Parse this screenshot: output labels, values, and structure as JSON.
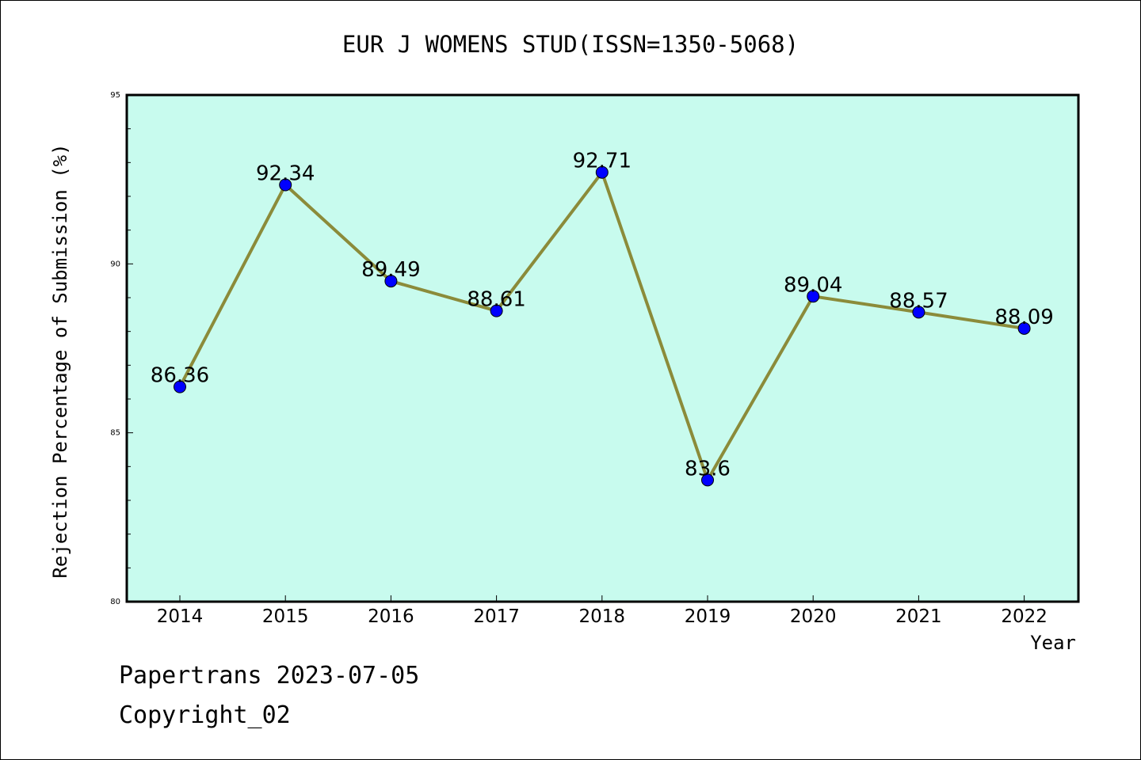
{
  "chart_data": {
    "type": "line",
    "title": "EUR J WOMENS STUD(ISSN=1350-5068)",
    "xlabel": "Year",
    "ylabel": "Rejection Percentage of Submission (%)",
    "categories": [
      "2014",
      "2015",
      "2016",
      "2017",
      "2018",
      "2019",
      "2020",
      "2021",
      "2022"
    ],
    "series": [
      {
        "values": [
          86.36,
          92.34,
          89.49,
          88.61,
          92.71,
          83.6,
          89.04,
          88.57,
          88.09
        ]
      }
    ],
    "data_labels": [
      "86.36",
      "92.34",
      "89.49",
      "88.61",
      "92.71",
      "83.6",
      "89.04",
      "88.57",
      "88.09"
    ],
    "ylim": [
      80,
      95
    ],
    "yticks": [
      "80",
      "85",
      "90",
      "95"
    ],
    "grid": false,
    "colors": {
      "plot_background": "#c8fbee",
      "line": "#8b8b3a",
      "marker": "#0000ff"
    }
  },
  "footer": {
    "stamp": "Papertrans 2023-07-05",
    "copyright": "Copyright_02"
  }
}
